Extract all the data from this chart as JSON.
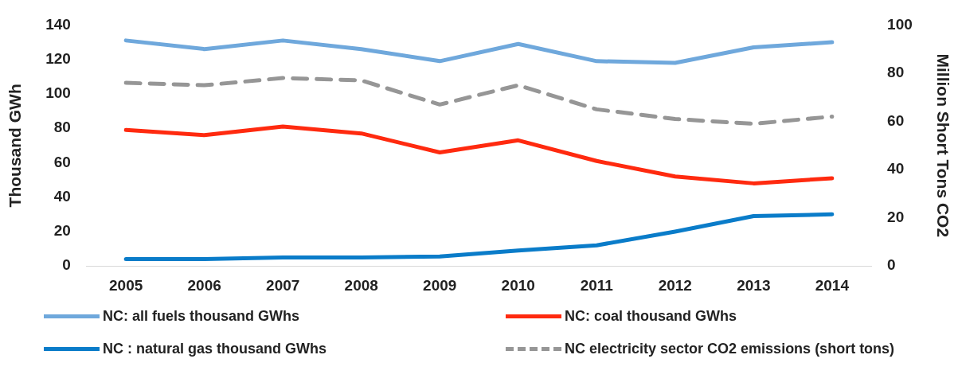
{
  "chart_data": {
    "type": "line",
    "ylabel": "Thousand GWh",
    "y2label": "Million Short Tons CO2",
    "categories": [
      "2005",
      "2006",
      "2007",
      "2008",
      "2009",
      "2010",
      "2011",
      "2012",
      "2013",
      "2014"
    ],
    "series": [
      {
        "name": "NC: all fuels thousand GWhs",
        "color": "#6fa8dc",
        "values": [
          131,
          126,
          131,
          126,
          119,
          129,
          119,
          118,
          127,
          130
        ]
      },
      {
        "name": "NC: coal thousand GWhs",
        "color": "#ff2a0f",
        "values": [
          79,
          76,
          81,
          77,
          66,
          73,
          61,
          52,
          48,
          51
        ]
      },
      {
        "name": "NC : natural gas thousand GWhs",
        "color": "#0a7cc9",
        "values": [
          4,
          4,
          5,
          5,
          5.5,
          9,
          12,
          20,
          29,
          30
        ]
      },
      {
        "name": "NC electricity sector CO2 emissions (short tons)",
        "color": "#969696",
        "axis": "y2",
        "line_style": "dashed",
        "values": [
          76,
          75,
          78,
          77,
          67,
          75,
          65,
          61,
          59,
          62
        ]
      }
    ],
    "ylim": [
      0,
      140
    ],
    "yticks": [
      0,
      20,
      40,
      60,
      80,
      100,
      120,
      140
    ],
    "y2lim": [
      0,
      100
    ],
    "y2ticks": [
      0,
      20,
      40,
      60,
      80,
      100
    ],
    "grid": false,
    "legend": "bottom",
    "marker": "none"
  }
}
